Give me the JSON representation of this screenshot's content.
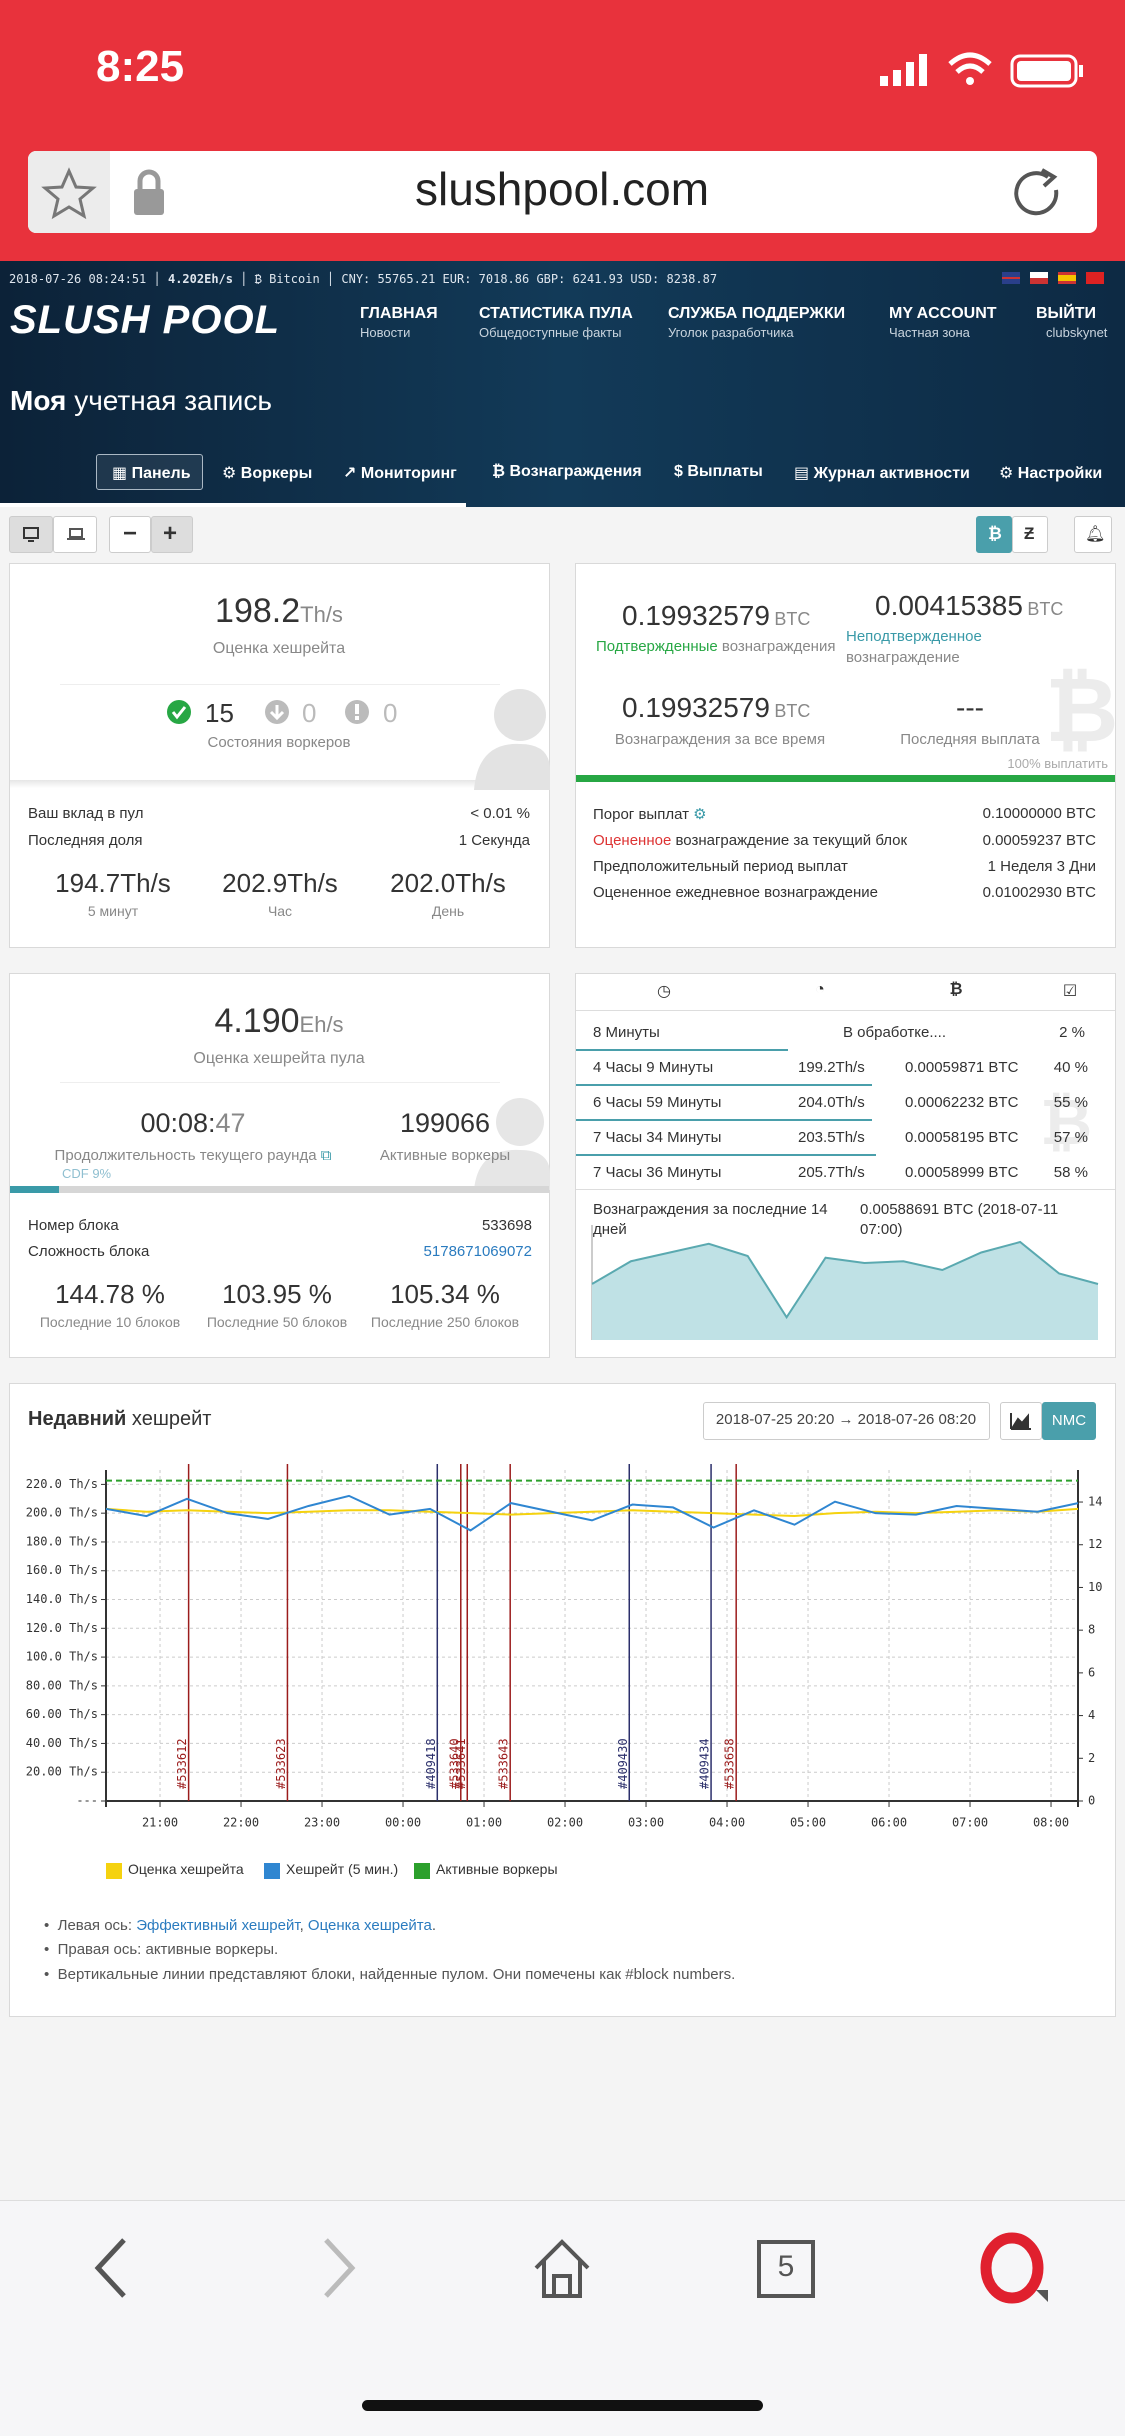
{
  "status_bar": {
    "time": "8:25"
  },
  "browser": {
    "url": "slushpool.com",
    "tab_count": "5"
  },
  "header": {
    "ticker": [
      "2018-07-26 08:24:51",
      "4.202Eh/s",
      "Bitcoin",
      "CNY: 55765.21 EUR: 7018.86 GBP: 6241.93 USD: 8238.87"
    ],
    "logo": "SLUSH POOL",
    "nav": [
      {
        "title": "ГЛАВНАЯ",
        "sub": "Новости"
      },
      {
        "title": "СТАТИСТИКА ПУЛА",
        "sub": "Общедоступные факты"
      },
      {
        "title": "СЛУЖБА ПОДДЕРЖКИ",
        "sub": "Уголок разработчика"
      },
      {
        "title": "MY ACCOUNT",
        "sub": "Частная зона"
      },
      {
        "title": "ВЫЙТИ",
        "sub": "clubskynet"
      }
    ],
    "page_title_bold": "Моя",
    "page_title_rest": "учетная запись",
    "tabs": [
      "Панель",
      "Воркеры",
      "Мониторинг",
      "Вознаграждения",
      "Выплаты",
      "Журнал активности",
      "Настройки"
    ]
  },
  "hashrate_card": {
    "value": "198.2",
    "unit": "Th/s",
    "label": "Оценка хешрейта",
    "workers": [
      "15",
      "0",
      "0"
    ],
    "workers_label": "Состояния воркеров",
    "rows": [
      [
        "Ваш вклад в пул",
        "< 0.01 %"
      ],
      [
        "Последняя доля",
        "1 Секунда"
      ]
    ],
    "averages": [
      [
        "194.7Th/s",
        "5 минут"
      ],
      [
        "202.9Th/s",
        "Час"
      ],
      [
        "202.0Th/s",
        "День"
      ]
    ]
  },
  "rewards_card": {
    "confirmed": {
      "value": "0.19932579",
      "unit": "BTC",
      "label_a": "Подтвержденные",
      "label_b": "вознаграждения"
    },
    "unconfirmed": {
      "value": "0.00415385",
      "unit": "BTC",
      "label_a": "Неподтвержденное",
      "label_b": "вознаграждение"
    },
    "all_time": {
      "value": "0.19932579",
      "unit": "BTC",
      "label": "Вознаграждения за все время"
    },
    "last_payout": {
      "value": "---",
      "label": "Последняя выплата"
    },
    "progress": "100% выплатить",
    "rows": [
      {
        "label": "Порог выплат",
        "value": "0.10000000 BTC"
      },
      {
        "label_red": "Оцененное",
        "label": "вознаграждение за текущий блок",
        "value": "0.00059237 BTC"
      },
      {
        "label": "Предположительный период выплат",
        "value": "1 Неделя 3 Дни"
      },
      {
        "label": "Оцененное ежедневное вознаграждение",
        "value": "0.01002930 BTC"
      }
    ]
  },
  "pool_card": {
    "value": "4.190",
    "unit": "Eh/s",
    "label": "Оценка хешрейта пула",
    "round_main": "00:08:",
    "round_sec": "47",
    "round_label": "Продолжительность текущего раунда",
    "active": "199066",
    "active_label": "Активные воркеры",
    "cdf": "CDF 9%",
    "rows": [
      [
        "Номер блока",
        "533698"
      ],
      [
        "Сложность блока",
        "5178671069072"
      ]
    ],
    "luck": [
      [
        "144.78 %",
        "Последние 10 блоков"
      ],
      [
        "103.95 %",
        "Последние 50 блоков"
      ],
      [
        "105.34 %",
        "Последние 250 блоков"
      ]
    ]
  },
  "blocks_card": {
    "pending": {
      "time": "8 Минуты",
      "status": "В обработке....",
      "share": "2 %"
    },
    "rows": [
      {
        "time": "4 Часы 9 Минуты",
        "hashrate": "199.2Th/s",
        "reward": "0.00059871 BTC",
        "share": "40 %"
      },
      {
        "time": "6 Часы 59 Минуты",
        "hashrate": "204.0Th/s",
        "reward": "0.00062232 BTC",
        "share": "55 %"
      },
      {
        "time": "7 Часы 34 Минуты",
        "hashrate": "203.5Th/s",
        "reward": "0.00058195 BTC",
        "share": "57 %"
      },
      {
        "time": "7 Часы 36 Минуты",
        "hashrate": "205.7Th/s",
        "reward": "0.00058999 BTC",
        "share": "58 %"
      }
    ],
    "summary_label": "Вознаграждения за последние 14 дней",
    "summary_value": "0.00588691 BTC (2018-07-11 07:00)"
  },
  "hashrate_panel": {
    "title_bold": "Недавний",
    "title_rest": "хешрейт",
    "range": "2018-07-25 20:20 → 2018-07-26 08:20",
    "nmc": "NMC",
    "notes": [
      [
        "Левая ось: ",
        "Эффективный хешрейт",
        ", ",
        "Оценка хешрейта",
        "."
      ],
      [
        "Правая ось: активные воркеры."
      ],
      [
        "Вертикальные линии представляют блоки, найденные пулом. Они помечены как #block numbers."
      ]
    ]
  },
  "chart_data": [
    {
      "type": "line",
      "x": [
        0,
        0.5,
        1,
        1.5,
        2,
        2.5,
        3,
        3.5,
        4,
        4.5,
        5,
        5.5,
        6,
        6.5,
        7,
        7.5,
        8,
        8.5,
        9,
        9.5,
        10,
        10.5,
        11,
        11.5,
        12
      ],
      "series": [
        {
          "name": "Оценка хешрейта",
          "color": "#f5d20f",
          "values": [
            203,
            201,
            202,
            201,
            200,
            201,
            202,
            202,
            201,
            200,
            199,
            200,
            201,
            202,
            201,
            200,
            199,
            198,
            200,
            201,
            200,
            201,
            202,
            201,
            203
          ]
        },
        {
          "name": "Хешрейт (5 мин.)",
          "color": "#2f86d1",
          "values": [
            203,
            198,
            210,
            200,
            196,
            205,
            212,
            199,
            203,
            188,
            207,
            201,
            195,
            206,
            204,
            190,
            202,
            192,
            208,
            200,
            199,
            205,
            203,
            201,
            207
          ]
        },
        {
          "name": "Активные воркеры",
          "color": "#2ca02c",
          "axis": "y2",
          "values": [
            15,
            15,
            15,
            15,
            15,
            15,
            15,
            15,
            15,
            15,
            15,
            15,
            15,
            15,
            15,
            15,
            15,
            15,
            15,
            15,
            15,
            15,
            15,
            15,
            15
          ]
        }
      ],
      "xlim": [
        0,
        12
      ],
      "xticks": [
        {
          "value": 0.667,
          "label": "21:00"
        },
        {
          "value": 1.667,
          "label": "22:00"
        },
        {
          "value": 2.667,
          "label": "23:00"
        },
        {
          "value": 3.667,
          "label": "00:00"
        },
        {
          "value": 4.667,
          "label": "01:00"
        },
        {
          "value": 5.667,
          "label": "02:00"
        },
        {
          "value": 6.667,
          "label": "03:00"
        },
        {
          "value": 7.667,
          "label": "04:00"
        },
        {
          "value": 8.667,
          "label": "05:00"
        },
        {
          "value": 9.667,
          "label": "06:00"
        },
        {
          "value": 10.667,
          "label": "07:00"
        },
        {
          "value": 11.667,
          "label": "08:00"
        }
      ],
      "ylim": [
        0,
        230
      ],
      "yticks": [
        {
          "value": 0,
          "label": "---"
        },
        {
          "value": 20,
          "label": "20.00 Th/s"
        },
        {
          "value": 40,
          "label": "40.00 Th/s"
        },
        {
          "value": 60,
          "label": "60.00 Th/s"
        },
        {
          "value": 80,
          "label": "80.00 Th/s"
        },
        {
          "value": 100,
          "label": "100.0 Th/s"
        },
        {
          "value": 120,
          "label": "120.0 Th/s"
        },
        {
          "value": 140,
          "label": "140.0 Th/s"
        },
        {
          "value": 160,
          "label": "160.0 Th/s"
        },
        {
          "value": 180,
          "label": "180.0 Th/s"
        },
        {
          "value": 200,
          "label": "200.0 Th/s"
        },
        {
          "value": 220,
          "label": "220.0 Th/s"
        }
      ],
      "y2lim": [
        0,
        15.5
      ],
      "y2ticks": [
        0,
        2,
        4,
        6,
        8,
        10,
        12,
        14
      ],
      "grid": true,
      "blocks": [
        {
          "label": "#533612",
          "x": 1.02,
          "color": "#9b1c1c"
        },
        {
          "label": "#533623",
          "x": 2.24,
          "color": "#9b1c1c"
        },
        {
          "label": "#409418",
          "x": 4.09,
          "color": "#2b2f6b"
        },
        {
          "label": "#533640",
          "x": 4.38,
          "color": "#9b1c1c"
        },
        {
          "label": "#533641",
          "x": 4.46,
          "color": "#9b1c1c"
        },
        {
          "label": "#533643",
          "x": 4.99,
          "color": "#9b1c1c"
        },
        {
          "label": "#409430",
          "x": 6.46,
          "color": "#2b2f6b"
        },
        {
          "label": "#409434",
          "x": 7.47,
          "color": "#2b2f6b"
        },
        {
          "label": "#533658",
          "x": 7.78,
          "color": "#9b1c1c"
        }
      ]
    },
    {
      "type": "area",
      "color": "#5aa9b0",
      "values": [
        0.00032,
        0.00045,
        0.0005,
        0.00055,
        0.00048,
        0.00013,
        0.00047,
        0.00044,
        0.00045,
        0.0004,
        0.0005,
        0.00056,
        0.00038,
        0.00032
      ],
      "ylim": [
        0,
        0.0006
      ]
    }
  ]
}
